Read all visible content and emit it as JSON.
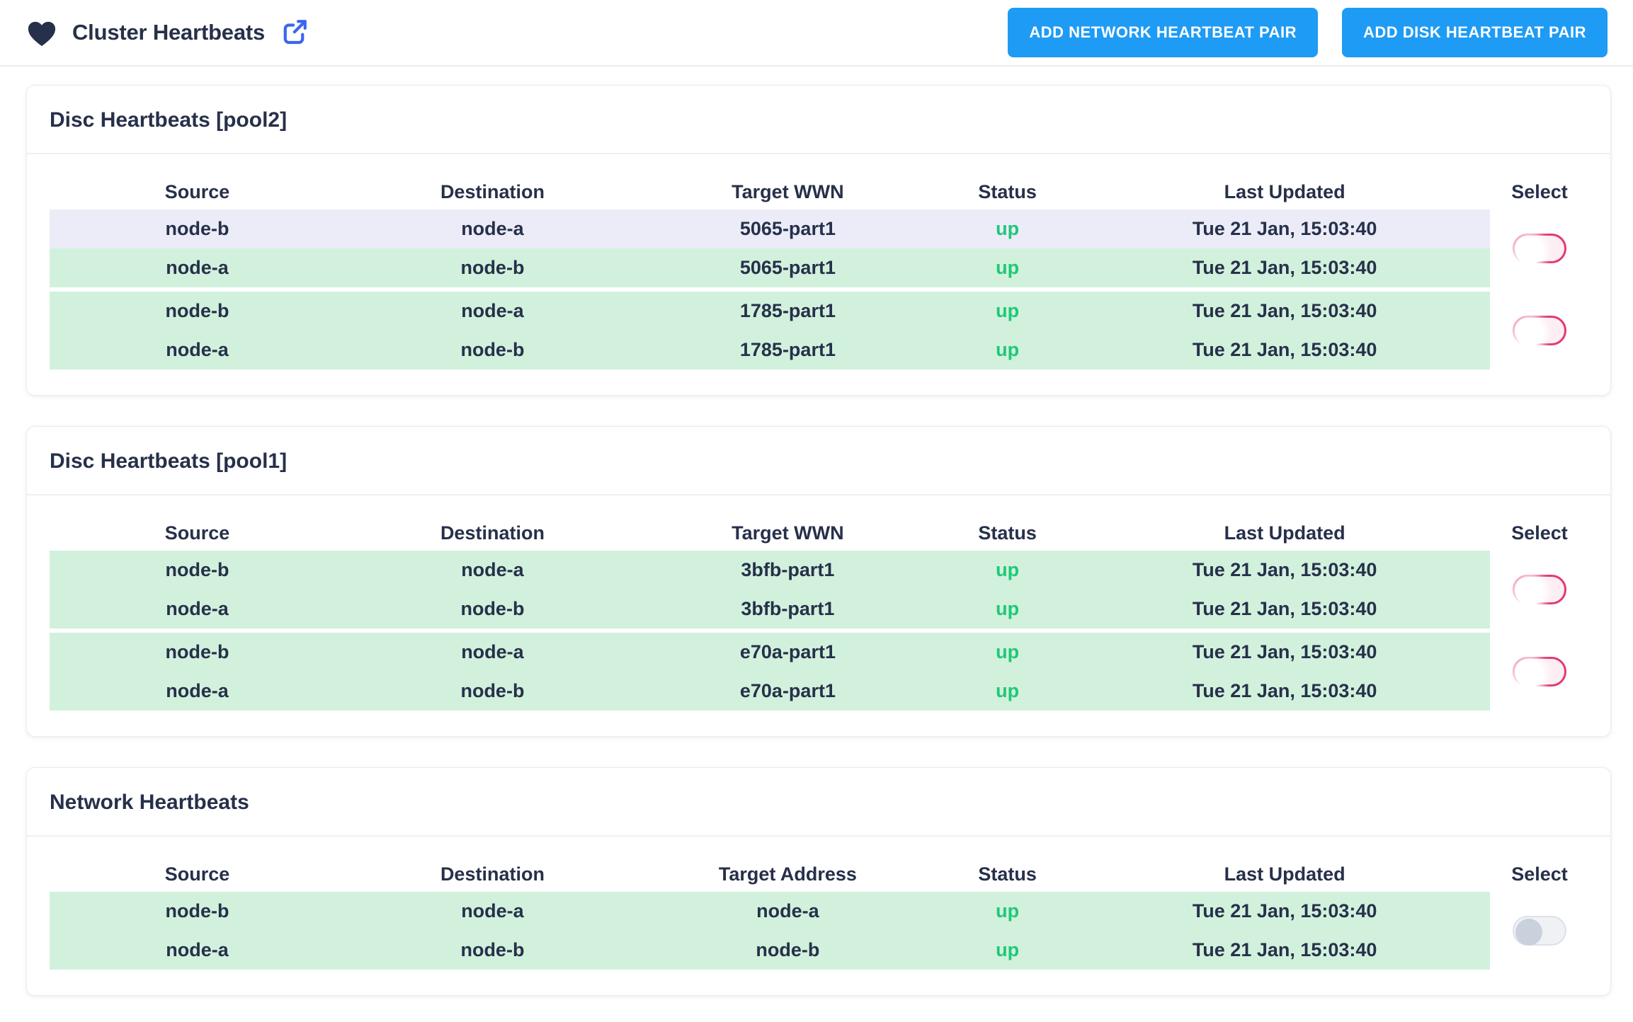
{
  "header": {
    "title": "Cluster Heartbeats",
    "buttons": [
      {
        "id": "add-network-heartbeat-pair",
        "label": "ADD NETWORK HEARTBEAT PAIR"
      },
      {
        "id": "add-disk-heartbeat-pair",
        "label": "ADD DISK HEARTBEAT PAIR"
      }
    ]
  },
  "colors": {
    "accent_blue": "#1e9bf5",
    "icon_blue": "#3b66f0",
    "navy_text": "#27304a",
    "status_up_green": "#1fc877",
    "row_green": "#d1f1dc",
    "row_lavender": "#ebecf8",
    "toggle_pink": "#e23a6d"
  },
  "sections": [
    {
      "title": "Disc Heartbeats [pool2]",
      "columns": [
        "Source",
        "Destination",
        "Target WWN",
        "Status",
        "Last Updated"
      ],
      "select_label": "Select",
      "pairs": [
        {
          "toggle": {
            "state": "off",
            "variant": "pink"
          },
          "rows": [
            {
              "source": "node-b",
              "destination": "node-a",
              "target": "5065-part1",
              "status": "up",
              "last_updated": "Tue 21 Jan, 15:03:40",
              "row_style": "lavender"
            },
            {
              "source": "node-a",
              "destination": "node-b",
              "target": "5065-part1",
              "status": "up",
              "last_updated": "Tue 21 Jan, 15:03:40",
              "row_style": "green"
            }
          ]
        },
        {
          "toggle": {
            "state": "off",
            "variant": "pink"
          },
          "rows": [
            {
              "source": "node-b",
              "destination": "node-a",
              "target": "1785-part1",
              "status": "up",
              "last_updated": "Tue 21 Jan, 15:03:40",
              "row_style": "green"
            },
            {
              "source": "node-a",
              "destination": "node-b",
              "target": "1785-part1",
              "status": "up",
              "last_updated": "Tue 21 Jan, 15:03:40",
              "row_style": "green"
            }
          ]
        }
      ]
    },
    {
      "title": "Disc Heartbeats [pool1]",
      "columns": [
        "Source",
        "Destination",
        "Target WWN",
        "Status",
        "Last Updated"
      ],
      "select_label": "Select",
      "pairs": [
        {
          "toggle": {
            "state": "off",
            "variant": "pink"
          },
          "rows": [
            {
              "source": "node-b",
              "destination": "node-a",
              "target": "3bfb-part1",
              "status": "up",
              "last_updated": "Tue 21 Jan, 15:03:40",
              "row_style": "green"
            },
            {
              "source": "node-a",
              "destination": "node-b",
              "target": "3bfb-part1",
              "status": "up",
              "last_updated": "Tue 21 Jan, 15:03:40",
              "row_style": "green"
            }
          ]
        },
        {
          "toggle": {
            "state": "off",
            "variant": "pink"
          },
          "rows": [
            {
              "source": "node-b",
              "destination": "node-a",
              "target": "e70a-part1",
              "status": "up",
              "last_updated": "Tue 21 Jan, 15:03:40",
              "row_style": "green"
            },
            {
              "source": "node-a",
              "destination": "node-b",
              "target": "e70a-part1",
              "status": "up",
              "last_updated": "Tue 21 Jan, 15:03:40",
              "row_style": "green"
            }
          ]
        }
      ]
    },
    {
      "title": "Network Heartbeats",
      "columns": [
        "Source",
        "Destination",
        "Target Address",
        "Status",
        "Last Updated"
      ],
      "select_label": "Select",
      "pairs": [
        {
          "toggle": {
            "state": "off",
            "variant": "gray"
          },
          "rows": [
            {
              "source": "node-b",
              "destination": "node-a",
              "target": "node-a",
              "status": "up",
              "last_updated": "Tue 21 Jan, 15:03:40",
              "row_style": "green"
            },
            {
              "source": "node-a",
              "destination": "node-b",
              "target": "node-b",
              "status": "up",
              "last_updated": "Tue 21 Jan, 15:03:40",
              "row_style": "green"
            }
          ]
        }
      ]
    }
  ]
}
